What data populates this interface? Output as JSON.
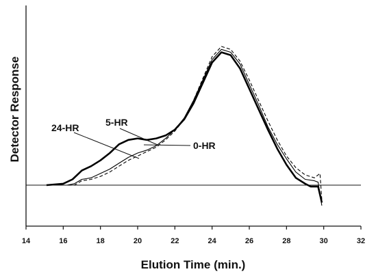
{
  "chart_data": {
    "type": "line",
    "title": "",
    "xlabel": "Elution Time (min.)",
    "ylabel": "Detector Response",
    "xlim": [
      14,
      32
    ],
    "ylim": [
      -0.35,
      1.0
    ],
    "x_ticks": [
      "14",
      "16",
      "18",
      "20",
      "22",
      "24",
      "26",
      "28",
      "30",
      "32"
    ],
    "grid": false,
    "legend": "none",
    "series": [
      {
        "name": "24-HR",
        "color": "#000000",
        "style": "bold-solid",
        "points": [
          [
            15.1,
            0.0
          ],
          [
            16.0,
            0.01
          ],
          [
            16.5,
            0.04
          ],
          [
            17.0,
            0.1
          ],
          [
            17.5,
            0.13
          ],
          [
            18.0,
            0.17
          ],
          [
            18.5,
            0.22
          ],
          [
            19.0,
            0.28
          ],
          [
            19.5,
            0.31
          ],
          [
            20.0,
            0.32
          ],
          [
            20.5,
            0.31
          ],
          [
            21.0,
            0.32
          ],
          [
            21.5,
            0.34
          ],
          [
            22.0,
            0.38
          ],
          [
            22.5,
            0.45
          ],
          [
            23.0,
            0.56
          ],
          [
            23.5,
            0.7
          ],
          [
            24.0,
            0.84
          ],
          [
            24.5,
            0.91
          ],
          [
            25.0,
            0.89
          ],
          [
            25.5,
            0.8
          ],
          [
            26.0,
            0.66
          ],
          [
            26.5,
            0.52
          ],
          [
            27.0,
            0.38
          ],
          [
            27.5,
            0.25
          ],
          [
            28.0,
            0.14
          ],
          [
            28.5,
            0.05
          ],
          [
            29.0,
            0.01
          ],
          [
            29.3,
            -0.01
          ],
          [
            29.7,
            -0.01
          ],
          [
            29.9,
            -0.12
          ]
        ]
      },
      {
        "name": "5-HR",
        "color": "#000000",
        "style": "solid",
        "points": [
          [
            15.1,
            0.0
          ],
          [
            16.2,
            0.0
          ],
          [
            16.6,
            0.01
          ],
          [
            17.0,
            0.04
          ],
          [
            17.5,
            0.05
          ],
          [
            18.0,
            0.08
          ],
          [
            18.5,
            0.11
          ],
          [
            19.0,
            0.15
          ],
          [
            19.5,
            0.19
          ],
          [
            20.0,
            0.22
          ],
          [
            20.5,
            0.24
          ],
          [
            21.0,
            0.27
          ],
          [
            21.5,
            0.32
          ],
          [
            22.0,
            0.38
          ],
          [
            22.5,
            0.46
          ],
          [
            23.0,
            0.58
          ],
          [
            23.5,
            0.72
          ],
          [
            24.0,
            0.86
          ],
          [
            24.5,
            0.93
          ],
          [
            25.0,
            0.91
          ],
          [
            25.5,
            0.83
          ],
          [
            26.0,
            0.69
          ],
          [
            26.5,
            0.55
          ],
          [
            27.0,
            0.4
          ],
          [
            27.5,
            0.28
          ],
          [
            28.0,
            0.18
          ],
          [
            28.5,
            0.09
          ],
          [
            29.0,
            0.04
          ],
          [
            29.5,
            0.03
          ],
          [
            29.7,
            0.02
          ],
          [
            29.9,
            -0.14
          ]
        ]
      },
      {
        "name": "0-HR",
        "color": "#000000",
        "style": "dashed",
        "points": [
          [
            15.1,
            0.0
          ],
          [
            16.2,
            0.0
          ],
          [
            16.6,
            0.0
          ],
          [
            17.0,
            0.03
          ],
          [
            17.5,
            0.04
          ],
          [
            18.0,
            0.06
          ],
          [
            18.5,
            0.09
          ],
          [
            19.0,
            0.13
          ],
          [
            19.5,
            0.17
          ],
          [
            20.0,
            0.2
          ],
          [
            20.5,
            0.23
          ],
          [
            21.0,
            0.26
          ],
          [
            21.5,
            0.31
          ],
          [
            22.0,
            0.37
          ],
          [
            22.5,
            0.45
          ],
          [
            23.0,
            0.58
          ],
          [
            23.5,
            0.73
          ],
          [
            24.0,
            0.88
          ],
          [
            24.5,
            0.95
          ],
          [
            25.0,
            0.93
          ],
          [
            25.5,
            0.85
          ],
          [
            26.0,
            0.72
          ],
          [
            26.5,
            0.58
          ],
          [
            27.0,
            0.44
          ],
          [
            27.5,
            0.31
          ],
          [
            28.0,
            0.2
          ],
          [
            28.5,
            0.12
          ],
          [
            29.0,
            0.07
          ],
          [
            29.5,
            0.05
          ],
          [
            29.8,
            0.08
          ],
          [
            29.9,
            -0.1
          ]
        ]
      }
    ],
    "annotations": [
      {
        "text": "24-HR",
        "series": "24-HR"
      },
      {
        "text": "5-HR",
        "series": "5-HR"
      },
      {
        "text": "0-HR",
        "series": "0-HR"
      }
    ]
  }
}
